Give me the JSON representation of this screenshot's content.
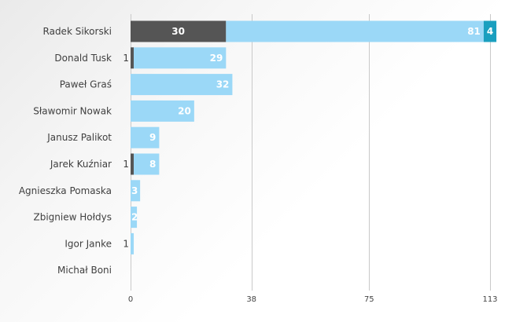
{
  "chart_data": {
    "type": "bar",
    "orientation": "horizontal",
    "stacked": true,
    "categories": [
      "Radek Sikorski",
      "Donald Tusk",
      "Paweł Graś",
      "Sławomir Nowak",
      "Janusz Palikot",
      "Jarek Kuźniar",
      "Agnieszka Pomaska",
      "Zbigniew Hołdys",
      "Igor Janke",
      "Michał Boni"
    ],
    "series": [
      {
        "values": [
          30,
          1,
          0,
          0,
          0,
          1,
          0,
          0,
          0,
          0
        ],
        "color": "#555555"
      },
      {
        "values": [
          81,
          29,
          32,
          20,
          9,
          8,
          3,
          2,
          1,
          0
        ],
        "color": "#9bd8f7"
      },
      {
        "values": [
          4,
          0,
          0,
          0,
          0,
          0,
          0,
          0,
          0,
          0
        ],
        "color": "#1a9fbf"
      }
    ],
    "xlim": [
      0,
      151
    ],
    "xticks": [
      0,
      38,
      75,
      113
    ],
    "grid": true,
    "xlabel": "",
    "ylabel": "",
    "title": ""
  }
}
